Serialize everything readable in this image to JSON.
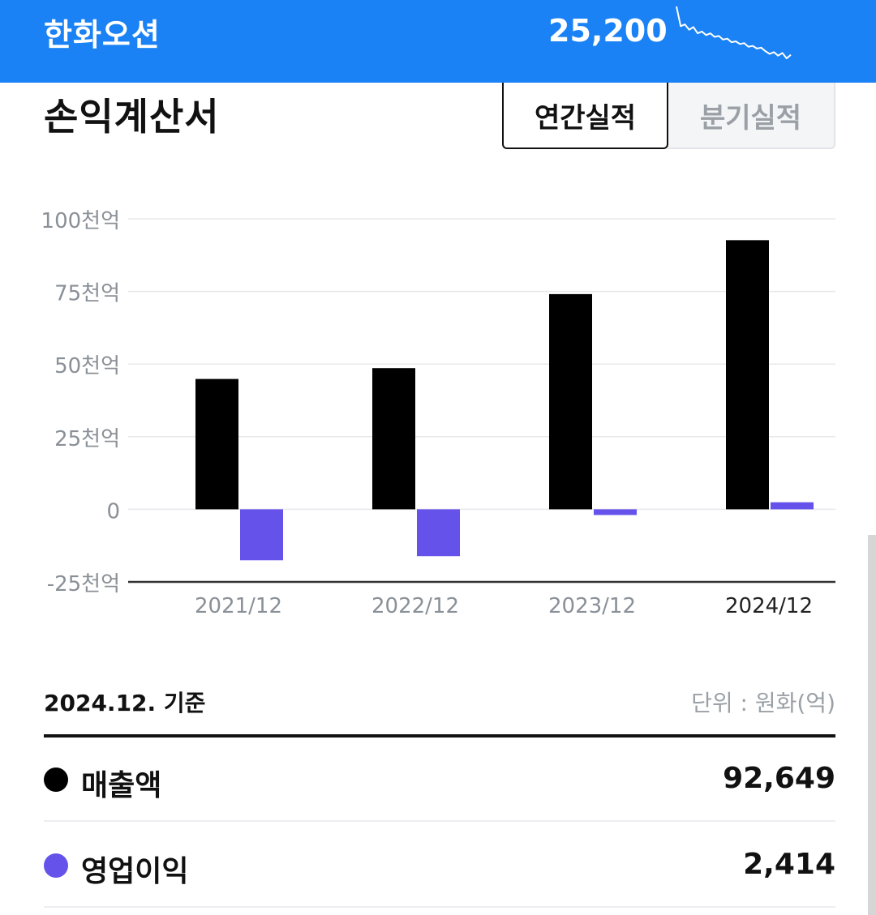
{
  "header": {
    "stock_name": "한화오션",
    "price": "25,200",
    "sparkline_values": [
      100,
      78,
      80,
      74,
      77,
      70,
      72,
      68,
      70,
      66,
      67,
      63,
      64,
      60,
      61,
      58,
      59,
      55,
      56,
      53,
      54,
      50,
      47,
      49,
      45,
      48,
      42,
      46
    ]
  },
  "section": {
    "title": "손익계산서",
    "tabs": [
      {
        "label": "연간실적",
        "active": true
      },
      {
        "label": "분기실적",
        "active": false
      }
    ]
  },
  "chart_data": {
    "type": "bar",
    "categories": [
      "2021/12",
      "2022/12",
      "2023/12",
      "2024/12"
    ],
    "highlight_category": "2024/12",
    "series": [
      {
        "name": "매출액",
        "color": "#000000",
        "values": [
          44866,
          48602,
          74083,
          92649
        ]
      },
      {
        "name": "영업이익",
        "color": "#6452ea",
        "values": [
          -17547,
          -16135,
          -1965,
          2414
        ]
      }
    ],
    "ylim": [
      -25000,
      100000
    ],
    "yticks": [
      -25000,
      0,
      25000,
      50000,
      75000,
      100000
    ],
    "ytick_labels": [
      "-25천억",
      "0",
      "25천억",
      "50천억",
      "75천억",
      "100천억"
    ],
    "grid": true
  },
  "summary": {
    "basis": "2024.12. 기준",
    "unit": "단위 : 원화(억)",
    "rows": [
      {
        "label": "매출액",
        "value": "92,649",
        "color": "#000000"
      },
      {
        "label": "영업이익",
        "value": "2,414",
        "color": "#6452ea"
      }
    ]
  }
}
